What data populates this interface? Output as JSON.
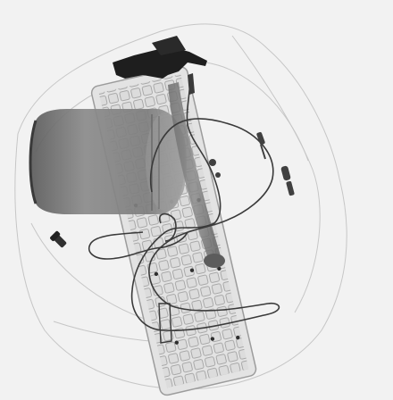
{
  "scan": {
    "background_color": "#f2f2f2",
    "dark_color": "#262626",
    "mid_color": "#6e6e6e",
    "objects": [
      "bag-outline",
      "keyboard",
      "hammer",
      "jar",
      "cable",
      "zipper-pulls",
      "screw"
    ]
  }
}
